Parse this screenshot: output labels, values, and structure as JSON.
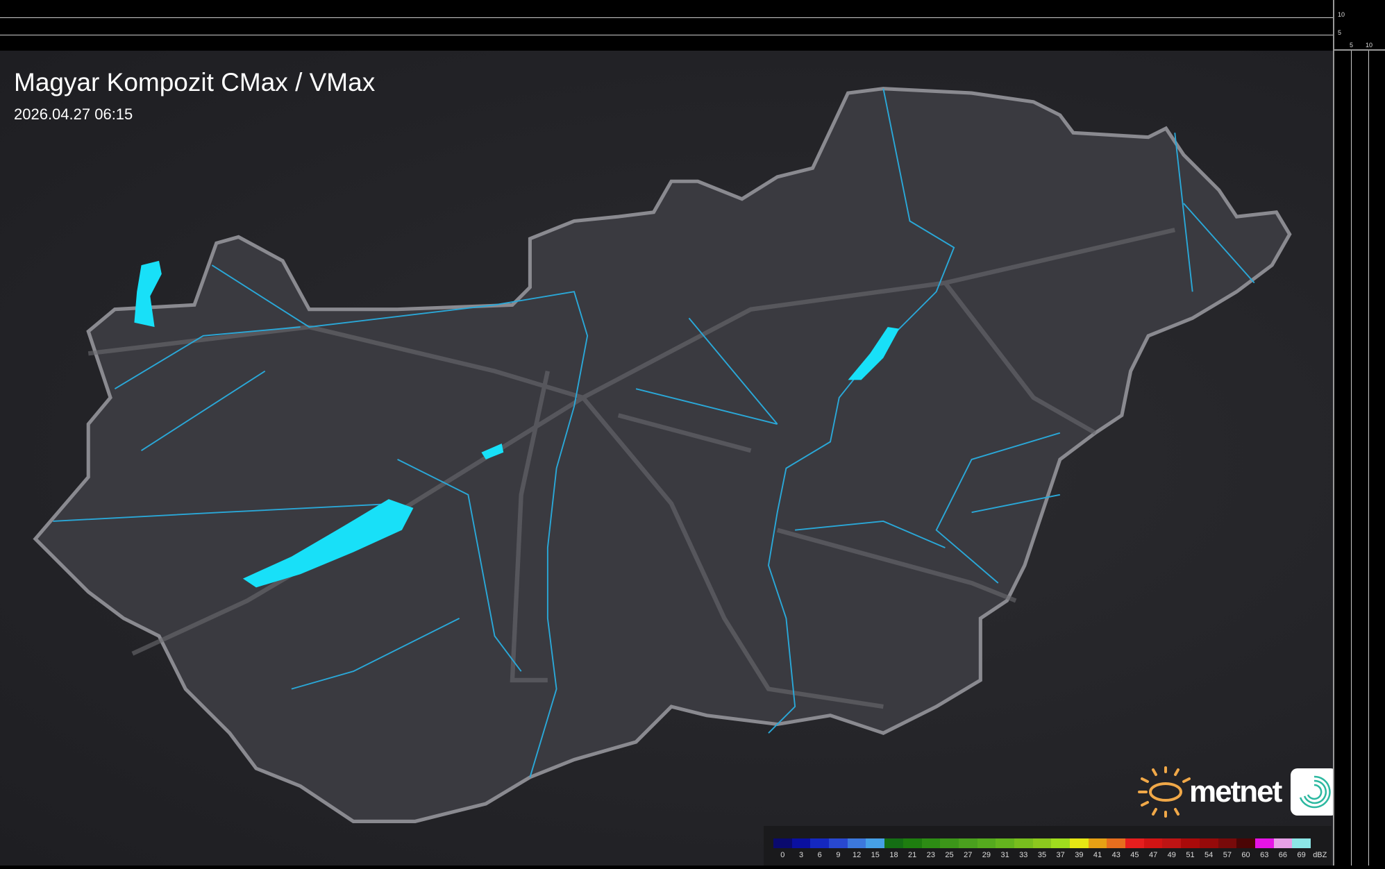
{
  "title": "Magyar Kompozit CMax / VMax",
  "timestamp": "2026.04.27 06:15",
  "logo": {
    "text": "metnet",
    "sun_color": "#f0a848",
    "app_icon": "spiral-icon"
  },
  "scale_ticks": {
    "vertical": [
      "10",
      "5"
    ],
    "horizontal": [
      "5",
      "10"
    ]
  },
  "map": {
    "country_fill": "#3a3a40",
    "border_color": "#8a8a90",
    "river_color": "#2aa8d8",
    "lake_color": "#18e0f8",
    "road_color": "#6a6a70"
  },
  "legend": {
    "unit": "dBZ",
    "labels": [
      "0",
      "3",
      "6",
      "9",
      "12",
      "15",
      "18",
      "21",
      "23",
      "25",
      "27",
      "29",
      "31",
      "33",
      "35",
      "37",
      "39",
      "41",
      "43",
      "45",
      "47",
      "49",
      "51",
      "54",
      "57",
      "60",
      "63",
      "66",
      "69"
    ],
    "colors": [
      "#0a0a6e",
      "#0a10a0",
      "#1428c0",
      "#2848d0",
      "#3c78dc",
      "#46a0e6",
      "#146e14",
      "#1e7d0f",
      "#2d8c14",
      "#3c9619",
      "#4aa01e",
      "#55aa1e",
      "#64b41e",
      "#78be1e",
      "#8cc81e",
      "#a0dc1e",
      "#e6e614",
      "#e6a014",
      "#e66e1e",
      "#e61e1e",
      "#d21414",
      "#be1414",
      "#aa0a0a",
      "#960a0a",
      "#780a0a",
      "#4b0505",
      "#e614e6",
      "#e6a0e6",
      "#8ce6e6"
    ]
  }
}
